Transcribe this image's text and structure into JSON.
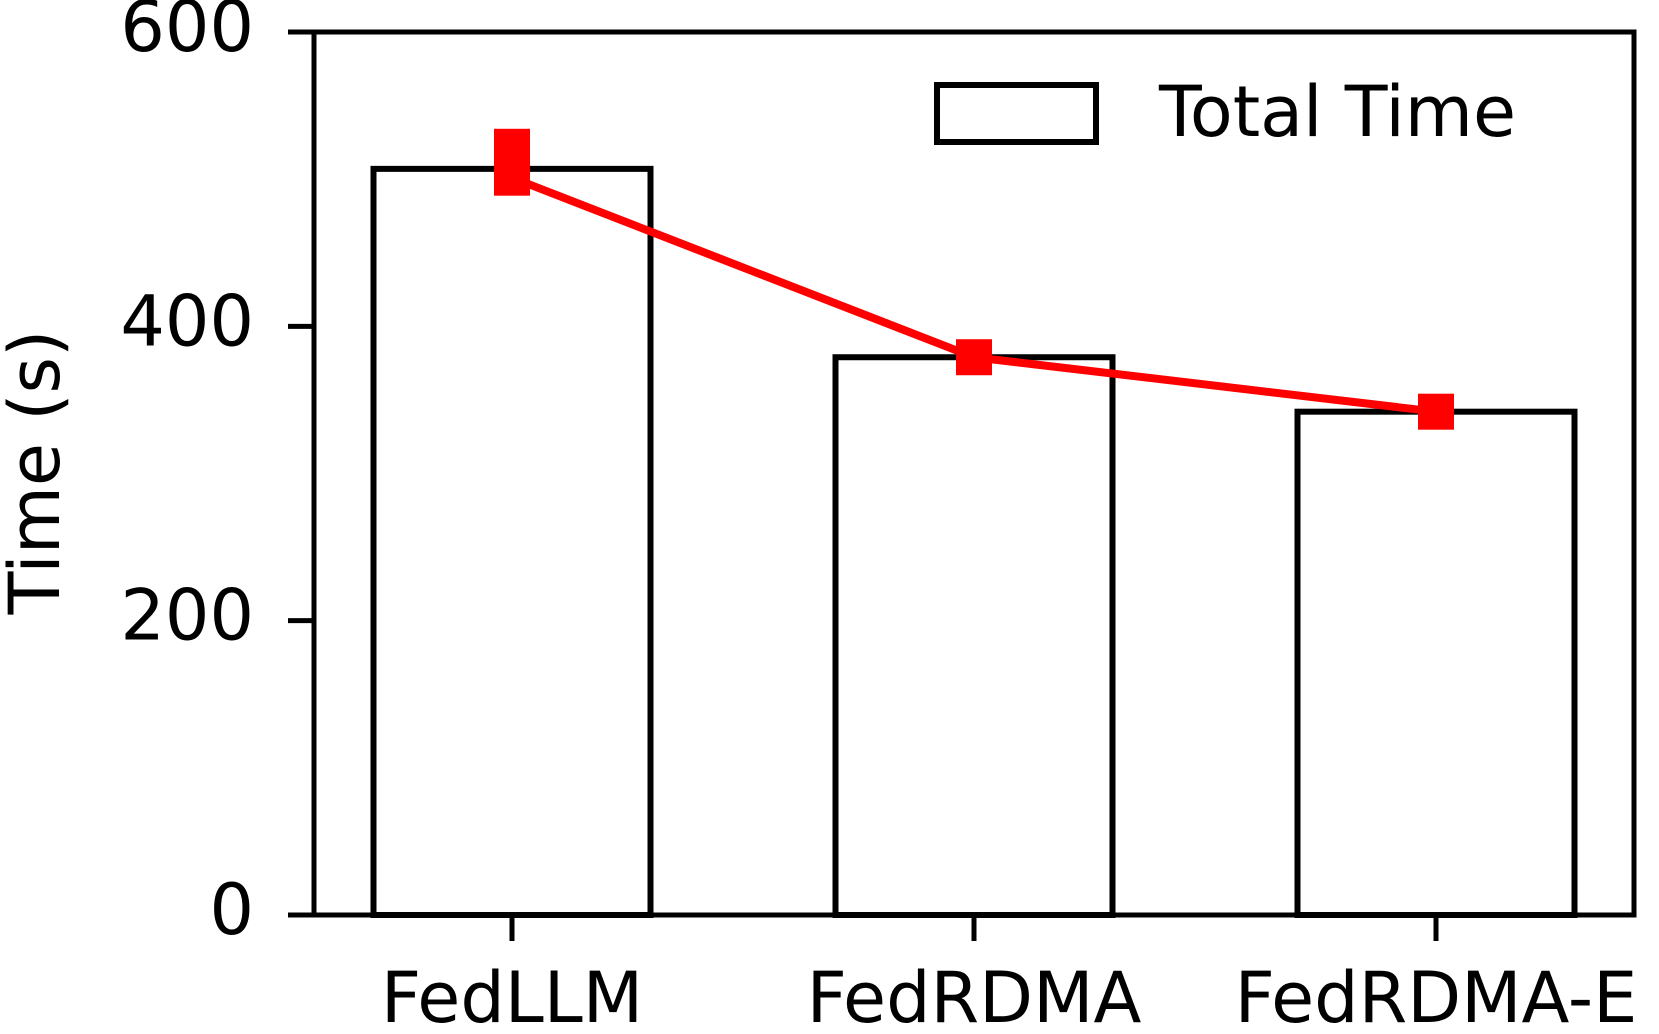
{
  "chart_data": {
    "type": "bar",
    "y_label": "Time (s)",
    "categories": [
      "FedLLM",
      "FedRDMA",
      "FedRDMA-E"
    ],
    "ylim": [
      0,
      600
    ],
    "yticks": [
      0,
      200,
      400,
      600
    ],
    "legend": "upper right",
    "series": [
      {
        "name": "Total Time",
        "type": "bar",
        "color": "#ffffff",
        "edgecolor": "#000000",
        "values": [
          507,
          379,
          342
        ]
      },
      {
        "type": "line",
        "color": "#ff0000",
        "marker": "square",
        "values": [
          501,
          379,
          342
        ]
      },
      {
        "type": "line",
        "color": "#ff0000",
        "marker": "square",
        "values": [
          522,
          null,
          null
        ]
      }
    ]
  }
}
